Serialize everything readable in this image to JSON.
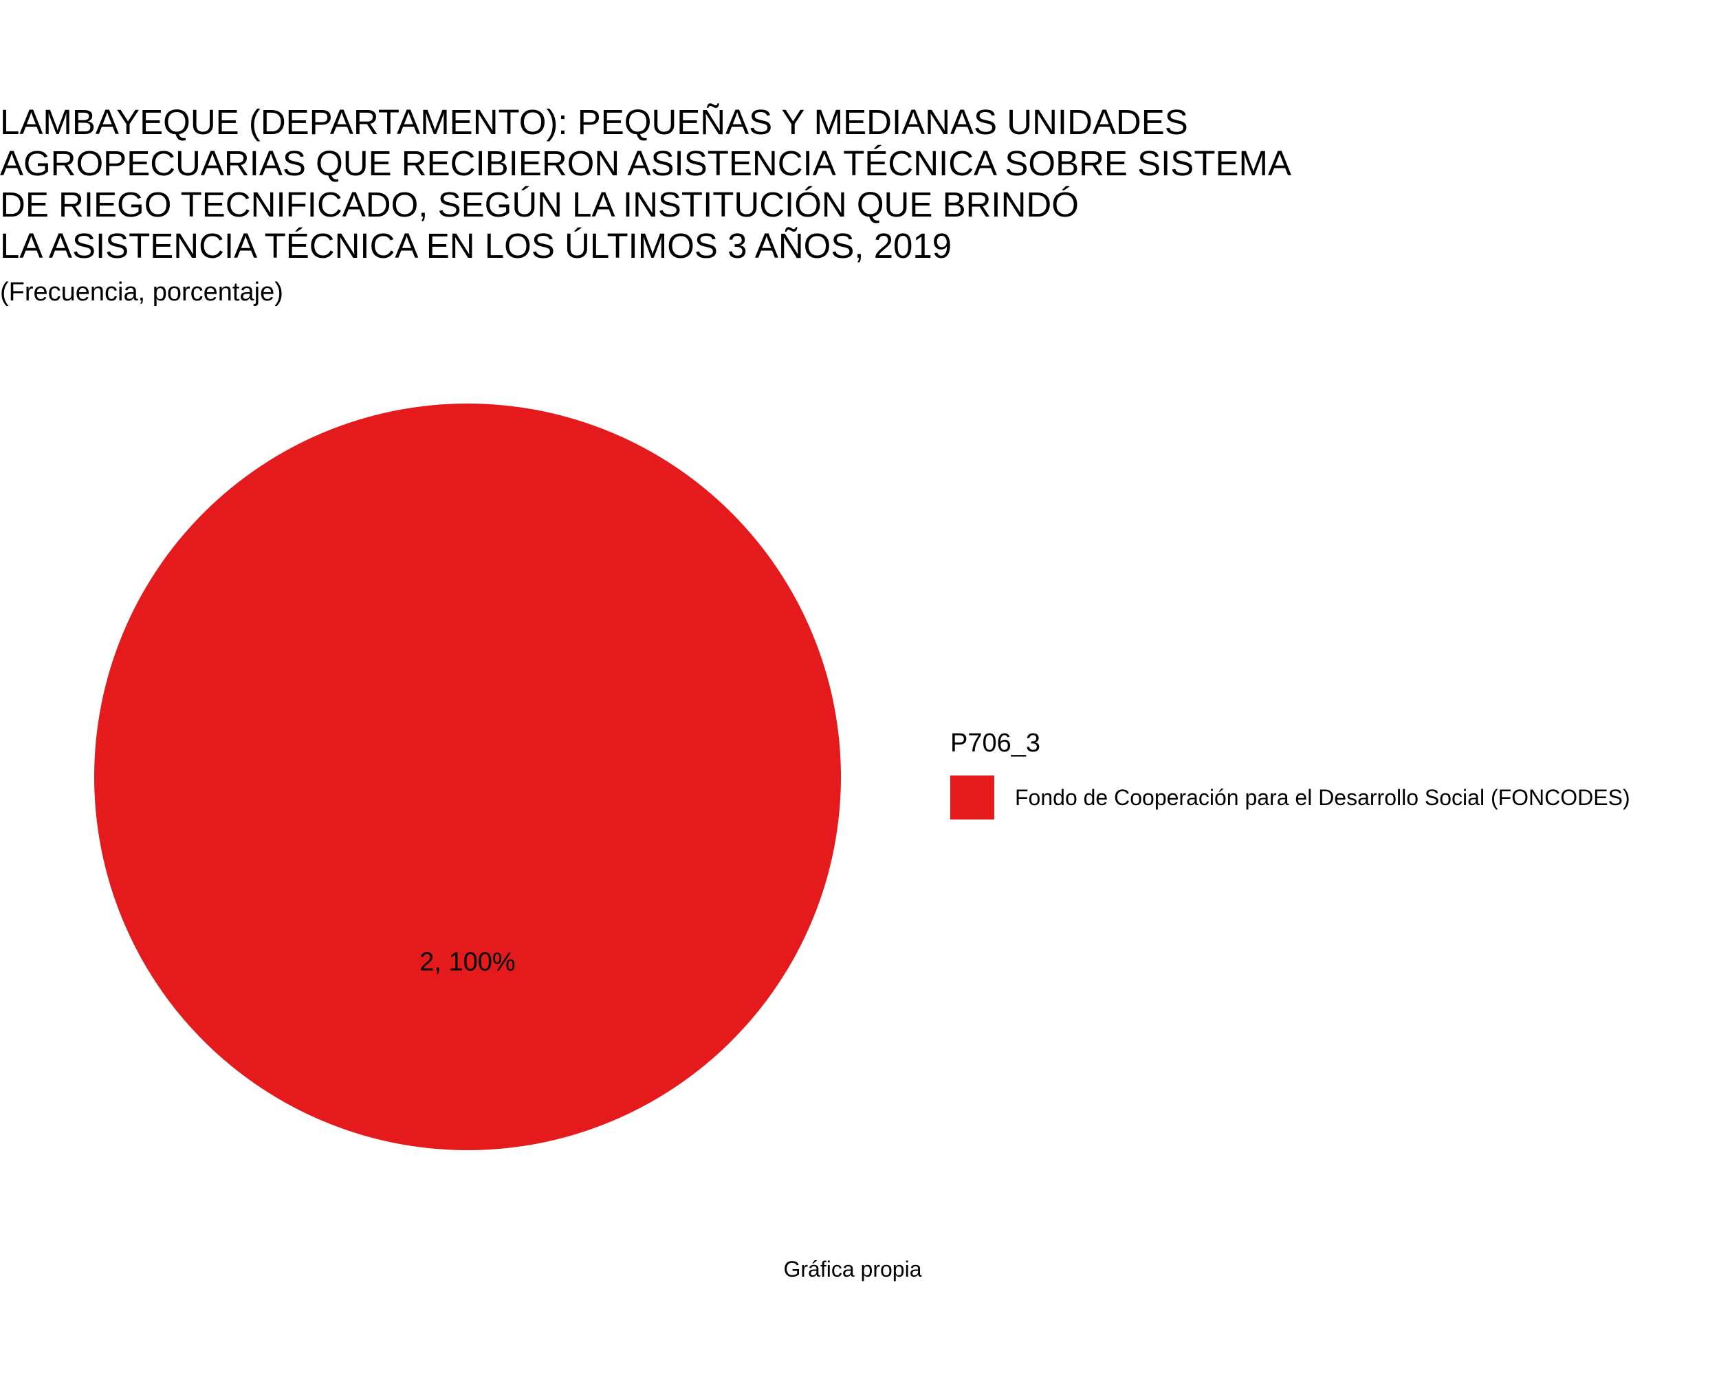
{
  "chart_data": {
    "type": "pie",
    "title_lines": [
      "LAMBAYEQUE (DEPARTAMENTO): PEQUEÑAS Y MEDIANAS UNIDADES",
      "AGROPECUARIAS QUE RECIBIERON ASISTENCIA TÉCNICA SOBRE SISTEMA",
      "DE RIEGO TECNIFICADO, SEGÚN LA INSTITUCIÓN QUE BRINDÓ",
      "LA ASISTENCIA TÉCNICA EN LOS ÚLTIMOS 3 AÑOS, 2019"
    ],
    "subtitle": "(Frecuencia, porcentaje)",
    "caption": "Gráfica propia",
    "legend_title": "P706_3",
    "legend_position": "right",
    "slices": [
      {
        "name": "Fondo de Cooperación para el Desarrollo Social (FONCODES)",
        "value": 2,
        "percent": 100,
        "label": "2, 100%",
        "color": "#E41A1C"
      }
    ]
  }
}
